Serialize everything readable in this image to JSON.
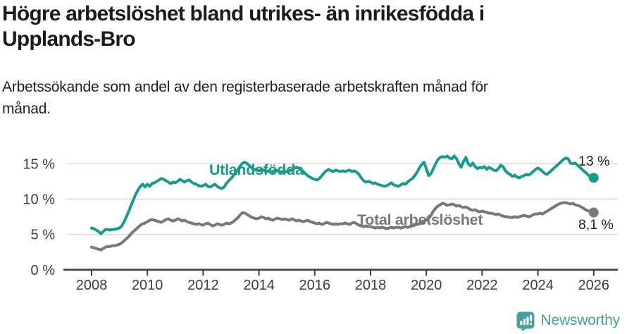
{
  "title": {
    "full": "Högre arbetslöshet bland utrikes- än inrikesfödda i Upplands-Bro",
    "lines": [
      "Högre arbetslöshet bland utrikes- än inrikesfödda i",
      "Upplands-Bro"
    ]
  },
  "subtitle": {
    "full": "Arbetssökande som andel av den registerbaserade arbetskraften månad för månad.",
    "lines": [
      "Arbetssökande som andel av den registerbaserade arbetskraften månad för",
      "månad."
    ]
  },
  "branding": {
    "logo_text": "Newsworthy",
    "logo_icon": "speech-bubble-bar-chart-icon",
    "logo_color": "#489e98"
  },
  "chart_data": {
    "type": "line",
    "title": "Högre arbetslöshet bland utrikes- än inrikesfödda i Upplands-Bro",
    "xlabel": "",
    "ylabel": "",
    "x_unit": "year, monthly points",
    "x_start_year": 2008,
    "x_end_year": 2026,
    "x_tick_years": [
      2008,
      2010,
      2012,
      2014,
      2016,
      2018,
      2020,
      2022,
      2024,
      2026
    ],
    "y_tick_values": [
      0,
      5,
      10,
      15
    ],
    "y_tick_labels": [
      "0 %",
      "5 %",
      "10 %",
      "15 %"
    ],
    "ylim": [
      0,
      17.5
    ],
    "grid": "horizontal",
    "grid_color": "#d9d9d9",
    "axis_color": "#3c3c3c",
    "end_label_color": "#1d1d1d",
    "series": [
      {
        "name": "Utlandsfödda",
        "color": "#1a9a8c",
        "end_label": "13 %",
        "end_value": 13.0,
        "values": [
          5.9,
          5.8,
          5.6,
          5.4,
          5.1,
          5.4,
          5.7,
          5.7,
          5.6,
          5.7,
          5.7,
          5.8,
          5.9,
          6.2,
          6.8,
          7.5,
          8.3,
          9.1,
          9.9,
          10.7,
          11.3,
          11.8,
          12.1,
          11.7,
          12.1,
          11.8,
          12.2,
          12.3,
          12.5,
          12.7,
          12.9,
          12.8,
          12.6,
          12.4,
          12.2,
          12.4,
          12.3,
          12.5,
          12.8,
          12.6,
          12.4,
          12.6,
          12.7,
          12.4,
          12.2,
          12.1,
          11.9,
          11.8,
          11.9,
          12.1,
          11.8,
          11.7,
          11.9,
          12.1,
          11.8,
          11.6,
          11.5,
          11.7,
          12.2,
          12.6,
          12.9,
          13.3,
          13.7,
          14.2,
          14.7,
          15.1,
          15.2,
          15.0,
          14.7,
          14.4,
          14.2,
          14.1,
          14.0,
          14.2,
          14.1,
          13.9,
          14.0,
          13.8,
          13.9,
          14.1,
          14.0,
          13.8,
          13.9,
          13.8,
          13.9,
          14.0,
          14.1,
          14.3,
          14.5,
          14.4,
          14.2,
          13.9,
          13.6,
          13.3,
          13.1,
          12.9,
          12.8,
          12.7,
          12.9,
          13.3,
          13.7,
          14.0,
          14.2,
          14.0,
          13.9,
          14.1,
          14.0,
          13.9,
          14.0,
          13.9,
          14.0,
          14.1,
          13.9,
          14.0,
          13.8,
          13.5,
          13.0,
          12.6,
          12.4,
          12.5,
          12.4,
          12.2,
          12.3,
          12.1,
          12.0,
          11.9,
          11.8,
          11.9,
          12.1,
          12.3,
          12.0,
          11.9,
          11.8,
          12.0,
          12.2,
          12.1,
          12.4,
          12.7,
          12.9,
          13.3,
          13.8,
          14.4,
          14.9,
          15.2,
          14.3,
          13.3,
          13.6,
          14.3,
          15.0,
          15.6,
          15.9,
          16.0,
          15.9,
          16.1,
          15.8,
          15.7,
          16.1,
          15.7,
          15.0,
          14.5,
          15.3,
          15.9,
          15.0,
          14.7,
          15.1,
          14.6,
          14.3,
          14.5,
          14.4,
          14.6,
          14.2,
          14.5,
          14.3,
          14.1,
          14.0,
          14.3,
          14.8,
          14.6,
          14.0,
          13.7,
          13.5,
          13.2,
          13.4,
          13.1,
          13.0,
          13.2,
          13.3,
          13.5,
          13.4,
          13.6,
          13.9,
          14.2,
          14.4,
          14.2,
          13.9,
          13.6,
          13.5,
          13.8,
          14.1,
          14.4,
          14.7,
          15.0,
          15.3,
          15.6,
          15.8,
          15.7,
          15.1,
          15.0,
          15.1,
          14.8,
          14.5,
          14.2,
          13.9,
          13.6,
          13.3,
          13.1,
          13.0
        ]
      },
      {
        "name": "Total arbetslöshet",
        "color": "#78787c",
        "end_label": "8,1 %",
        "end_value": 8.1,
        "values": [
          3.2,
          3.1,
          3.0,
          2.9,
          2.8,
          3.0,
          3.2,
          3.3,
          3.3,
          3.4,
          3.4,
          3.5,
          3.6,
          3.8,
          4.1,
          4.4,
          4.7,
          5.1,
          5.4,
          5.7,
          6.0,
          6.3,
          6.5,
          6.6,
          6.8,
          7.0,
          7.1,
          7.0,
          6.9,
          6.8,
          6.7,
          6.9,
          7.1,
          7.2,
          7.0,
          6.9,
          7.0,
          7.2,
          7.1,
          6.9,
          7.0,
          6.8,
          6.7,
          6.6,
          6.5,
          6.4,
          6.5,
          6.4,
          6.3,
          6.5,
          6.6,
          6.4,
          6.2,
          6.3,
          6.5,
          6.4,
          6.3,
          6.4,
          6.6,
          6.5,
          6.6,
          6.8,
          7.1,
          7.4,
          7.8,
          8.1,
          8.0,
          7.8,
          7.6,
          7.4,
          7.3,
          7.2,
          7.3,
          7.5,
          7.4,
          7.2,
          7.3,
          7.1,
          7.0,
          7.2,
          7.3,
          7.2,
          7.1,
          7.2,
          7.1,
          7.0,
          7.2,
          7.1,
          6.9,
          7.0,
          6.9,
          6.8,
          6.9,
          7.0,
          6.8,
          6.7,
          6.6,
          6.5,
          6.6,
          6.4,
          6.5,
          6.7,
          6.6,
          6.5,
          6.4,
          6.5,
          6.4,
          6.5,
          6.5,
          6.6,
          6.5,
          6.4,
          6.6,
          6.7,
          6.5,
          6.3,
          6.2,
          6.1,
          6.2,
          6.1,
          6.1,
          6.0,
          5.9,
          6.0,
          5.9,
          6.0,
          5.9,
          5.8,
          5.9,
          6.0,
          5.9,
          6.0,
          6.0,
          5.9,
          6.0,
          6.1,
          6.0,
          6.1,
          6.2,
          6.3,
          6.4,
          6.5,
          6.6,
          6.8,
          7.0,
          7.3,
          7.7,
          8.3,
          8.7,
          9.0,
          9.2,
          9.4,
          9.3,
          9.1,
          9.2,
          9.3,
          9.2,
          9.0,
          9.1,
          8.9,
          8.8,
          8.9,
          8.7,
          8.5,
          8.4,
          8.5,
          8.3,
          8.2,
          8.3,
          8.2,
          8.1,
          8.0,
          8.0,
          7.9,
          7.8,
          7.9,
          7.7,
          7.6,
          7.5,
          7.5,
          7.4,
          7.4,
          7.5,
          7.4,
          7.5,
          7.6,
          7.7,
          7.6,
          7.5,
          7.6,
          7.8,
          7.9,
          7.9,
          8.0,
          7.9,
          8.1,
          8.3,
          8.5,
          8.7,
          8.9,
          9.1,
          9.3,
          9.4,
          9.5,
          9.5,
          9.4,
          9.3,
          9.4,
          9.2,
          9.1,
          9.0,
          8.8,
          8.6,
          8.4,
          8.3,
          8.2,
          8.1
        ]
      }
    ]
  }
}
